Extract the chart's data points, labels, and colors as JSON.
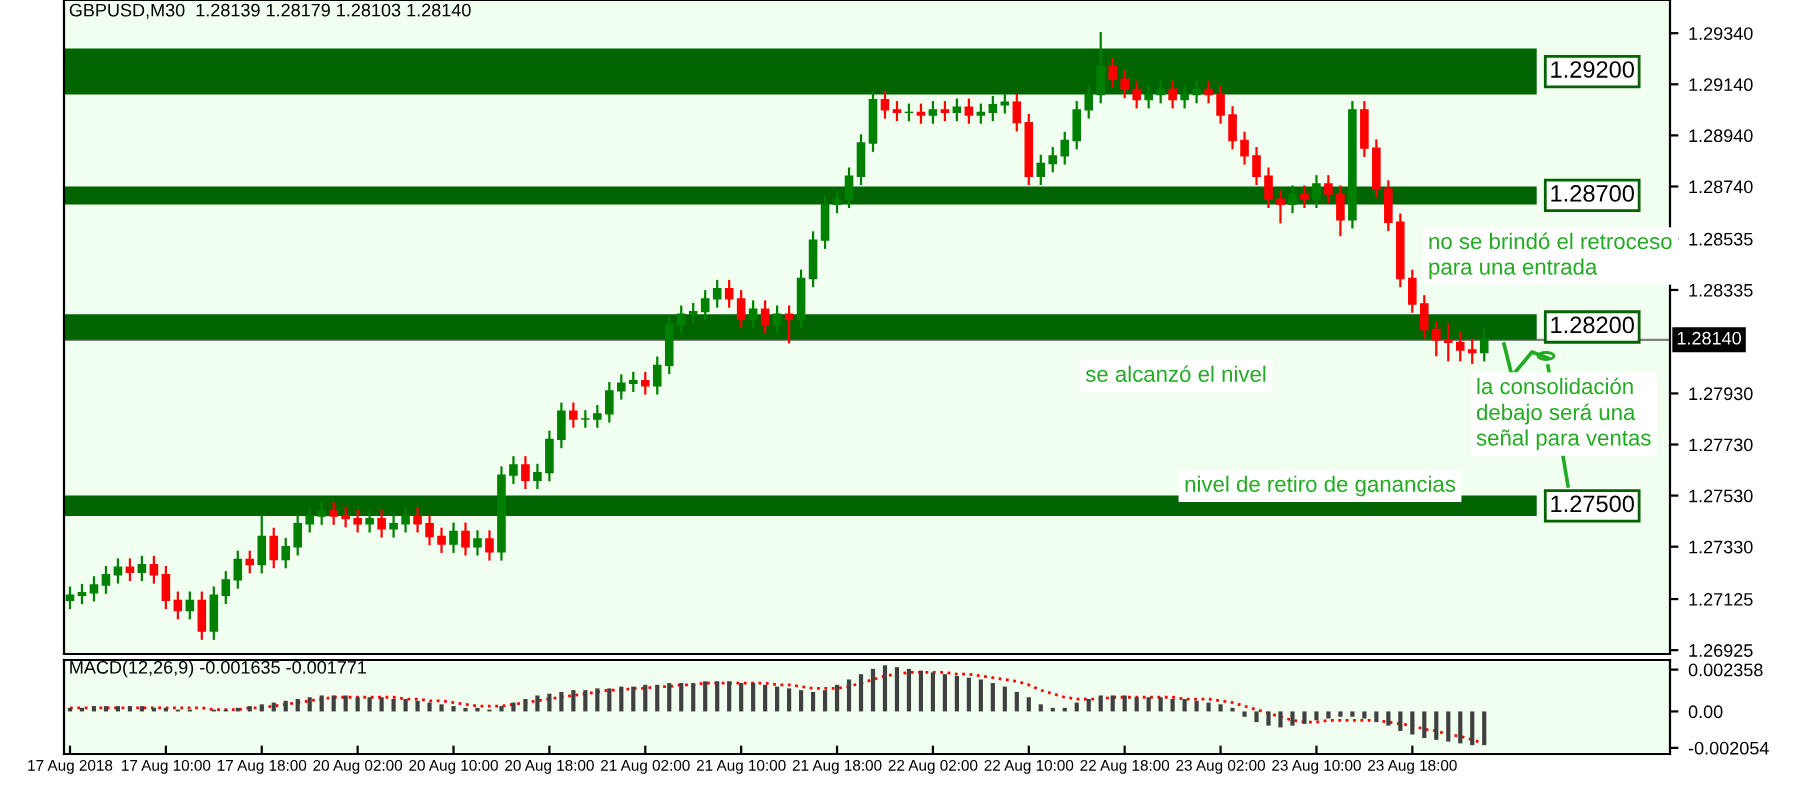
{
  "chart_data": [
    {
      "type": "candlestick",
      "title": "GBPUSD,M30  1.28139 1.28179 1.28103 1.28140",
      "categories": [
        null,
        null,
        null,
        null,
        null,
        null,
        null,
        null,
        null,
        null,
        null,
        null,
        null,
        null,
        null,
        null,
        null,
        null,
        null,
        null,
        null,
        null,
        null,
        null,
        null,
        null,
        null,
        null,
        null,
        null,
        null,
        null,
        null,
        null,
        null,
        null,
        null,
        null,
        null,
        null,
        null,
        null,
        null,
        null,
        null,
        null,
        null,
        null,
        null,
        null,
        null,
        null,
        null,
        null,
        null,
        null,
        null,
        null,
        null,
        null,
        null,
        null,
        null,
        null,
        null,
        null,
        null,
        null,
        null,
        null,
        null,
        null,
        null,
        null,
        null,
        null,
        null,
        null,
        null,
        null,
        null,
        null,
        null,
        null,
        null,
        null,
        null,
        null,
        null,
        null,
        null,
        null,
        null,
        null,
        null,
        null,
        null,
        null,
        null,
        null,
        null,
        null,
        null,
        null,
        null,
        null,
        null,
        null,
        null,
        null,
        null,
        null,
        null,
        null,
        null,
        null,
        null,
        null,
        null,
        null,
        null,
        null,
        null,
        null,
        null,
        null,
        null,
        null,
        null,
        null,
        null,
        null,
        null,
        null
      ],
      "ohlc": [
        [
          1.2712,
          1.2717,
          1.2709,
          1.2714
        ],
        [
          1.2714,
          1.2718,
          1.2711,
          1.2715
        ],
        [
          1.2715,
          1.2721,
          1.2712,
          1.2718
        ],
        [
          1.2718,
          1.2725,
          1.2715,
          1.2722
        ],
        [
          1.2722,
          1.2728,
          1.2719,
          1.2725
        ],
        [
          1.2725,
          1.2728,
          1.272,
          1.2723
        ],
        [
          1.2723,
          1.2729,
          1.272,
          1.2726
        ],
        [
          1.2726,
          1.2729,
          1.2719,
          1.2722
        ],
        [
          1.2722,
          1.2725,
          1.2709,
          1.2712
        ],
        [
          1.2712,
          1.2715,
          1.2705,
          1.2708
        ],
        [
          1.2708,
          1.2715,
          1.2705,
          1.2712
        ],
        [
          1.2712,
          1.2715,
          1.2697,
          1.27
        ],
        [
          1.27,
          1.2717,
          1.2697,
          1.2714
        ],
        [
          1.2714,
          1.2723,
          1.2711,
          1.272
        ],
        [
          1.272,
          1.2731,
          1.2717,
          1.2728
        ],
        [
          1.2728,
          1.2731,
          1.2723,
          1.2726
        ],
        [
          1.2726,
          1.2745,
          1.2723,
          1.2737
        ],
        [
          1.2737,
          1.274,
          1.2725,
          1.2728
        ],
        [
          1.2728,
          1.2736,
          1.2725,
          1.2733
        ],
        [
          1.2733,
          1.2745,
          1.273,
          1.2742
        ],
        [
          1.2742,
          1.2748,
          1.2739,
          1.2745
        ],
        [
          1.2745,
          1.275,
          1.2742,
          1.2747
        ],
        [
          1.2747,
          1.275,
          1.2742,
          1.2745
        ],
        [
          1.2745,
          1.2748,
          1.2741,
          1.2744
        ],
        [
          1.2744,
          1.2747,
          1.2739,
          1.2742
        ],
        [
          1.2742,
          1.2747,
          1.2739,
          1.2744
        ],
        [
          1.2744,
          1.2747,
          1.2737,
          1.274
        ],
        [
          1.274,
          1.2745,
          1.2737,
          1.2742
        ],
        [
          1.2742,
          1.2748,
          1.2739,
          1.2745
        ],
        [
          1.2745,
          1.2748,
          1.2739,
          1.2742
        ],
        [
          1.2742,
          1.2745,
          1.2734,
          1.2737
        ],
        [
          1.2737,
          1.274,
          1.2731,
          1.2734
        ],
        [
          1.2734,
          1.2742,
          1.2731,
          1.2739
        ],
        [
          1.2739,
          1.2742,
          1.273,
          1.2733
        ],
        [
          1.2733,
          1.2739,
          1.273,
          1.2736
        ],
        [
          1.2736,
          1.2739,
          1.2728,
          1.2731
        ],
        [
          1.2731,
          1.2764,
          1.2728,
          1.2761
        ],
        [
          1.2761,
          1.2768,
          1.2758,
          1.2765
        ],
        [
          1.2765,
          1.2768,
          1.2756,
          1.2759
        ],
        [
          1.2759,
          1.2765,
          1.2756,
          1.2762
        ],
        [
          1.2762,
          1.2778,
          1.2759,
          1.2775
        ],
        [
          1.2775,
          1.2789,
          1.2772,
          1.2786
        ],
        [
          1.2786,
          1.2789,
          1.278,
          1.2783
        ],
        [
          1.2783,
          1.2786,
          1.278,
          1.2783
        ],
        [
          1.2783,
          1.2788,
          1.278,
          1.2785
        ],
        [
          1.2785,
          1.2797,
          1.2782,
          1.2794
        ],
        [
          1.2794,
          1.28,
          1.2791,
          1.2797
        ],
        [
          1.2797,
          1.2801,
          1.2794,
          1.2798
        ],
        [
          1.2798,
          1.2801,
          1.2793,
          1.2796
        ],
        [
          1.2796,
          1.2807,
          1.2793,
          1.2804
        ],
        [
          1.2804,
          1.2823,
          1.2801,
          1.282
        ],
        [
          1.282,
          1.2827,
          1.2817,
          1.2824
        ],
        [
          1.2824,
          1.2828,
          1.2821,
          1.2825
        ],
        [
          1.2825,
          1.2833,
          1.2822,
          1.283
        ],
        [
          1.283,
          1.2837,
          1.2827,
          1.2834
        ],
        [
          1.2834,
          1.2837,
          1.2827,
          1.283
        ],
        [
          1.283,
          1.2833,
          1.2819,
          1.2822
        ],
        [
          1.2822,
          1.2829,
          1.2819,
          1.2826
        ],
        [
          1.2826,
          1.2829,
          1.2817,
          1.282
        ],
        [
          1.282,
          1.2827,
          1.2817,
          1.2824
        ],
        [
          1.2824,
          1.2827,
          1.2813,
          1.2822
        ],
        [
          1.2822,
          1.2841,
          1.2819,
          1.2838
        ],
        [
          1.2838,
          1.2856,
          1.2835,
          1.2853
        ],
        [
          1.2853,
          1.287,
          1.285,
          1.2867
        ],
        [
          1.2867,
          1.2872,
          1.2864,
          1.2869
        ],
        [
          1.2869,
          1.2881,
          1.2866,
          1.2878
        ],
        [
          1.2878,
          1.2894,
          1.2875,
          1.2891
        ],
        [
          1.2891,
          1.2911,
          1.2888,
          1.2908
        ],
        [
          1.2908,
          1.2911,
          1.2901,
          1.2904
        ],
        [
          1.2904,
          1.2907,
          1.29,
          1.2903
        ],
        [
          1.2903,
          1.2906,
          1.29,
          1.2903
        ],
        [
          1.2903,
          1.2906,
          1.2899,
          1.2902
        ],
        [
          1.2902,
          1.2907,
          1.2899,
          1.2904
        ],
        [
          1.2904,
          1.2907,
          1.29,
          1.2903
        ],
        [
          1.2903,
          1.2908,
          1.29,
          1.2905
        ],
        [
          1.2905,
          1.2908,
          1.2899,
          1.2902
        ],
        [
          1.2902,
          1.2906,
          1.2899,
          1.2903
        ],
        [
          1.2903,
          1.2909,
          1.29,
          1.2906
        ],
        [
          1.2906,
          1.291,
          1.2903,
          1.2907
        ],
        [
          1.2907,
          1.291,
          1.2896,
          1.2899
        ],
        [
          1.2899,
          1.2902,
          1.2875,
          1.2878
        ],
        [
          1.2878,
          1.2886,
          1.2875,
          1.2883
        ],
        [
          1.2883,
          1.2889,
          1.288,
          1.2886
        ],
        [
          1.2886,
          1.2895,
          1.2883,
          1.2892
        ],
        [
          1.2892,
          1.2907,
          1.2889,
          1.2904
        ],
        [
          1.2904,
          1.2913,
          1.2901,
          1.291
        ],
        [
          1.291,
          1.2934,
          1.2907,
          1.2921
        ],
        [
          1.2921,
          1.2924,
          1.2913,
          1.2916
        ],
        [
          1.2916,
          1.2919,
          1.2909,
          1.2912
        ],
        [
          1.2912,
          1.2915,
          1.2905,
          1.2908
        ],
        [
          1.2908,
          1.2913,
          1.2905,
          1.291
        ],
        [
          1.291,
          1.2915,
          1.2907,
          1.2912
        ],
        [
          1.2912,
          1.2915,
          1.2905,
          1.2908
        ],
        [
          1.2908,
          1.2913,
          1.2905,
          1.291
        ],
        [
          1.291,
          1.2915,
          1.2907,
          1.2912
        ],
        [
          1.2912,
          1.2915,
          1.2907,
          1.291
        ],
        [
          1.291,
          1.2913,
          1.2899,
          1.2902
        ],
        [
          1.2902,
          1.2905,
          1.2889,
          1.2892
        ],
        [
          1.2892,
          1.2895,
          1.2883,
          1.2886
        ],
        [
          1.2886,
          1.2889,
          1.2875,
          1.2878
        ],
        [
          1.2878,
          1.2881,
          1.2866,
          1.2869
        ],
        [
          1.2869,
          1.2872,
          1.286,
          1.2867
        ],
        [
          1.2867,
          1.2874,
          1.2864,
          1.2871
        ],
        [
          1.2871,
          1.2874,
          1.2866,
          1.2869
        ],
        [
          1.2869,
          1.2878,
          1.2866,
          1.2875
        ],
        [
          1.2875,
          1.2878,
          1.2868,
          1.2871
        ],
        [
          1.2871,
          1.2874,
          1.2855,
          1.2861
        ],
        [
          1.2861,
          1.2907,
          1.2858,
          1.2904
        ],
        [
          1.2904,
          1.2907,
          1.2886,
          1.2889
        ],
        [
          1.2889,
          1.2892,
          1.287,
          1.2873
        ],
        [
          1.2873,
          1.2876,
          1.2857,
          1.286
        ],
        [
          1.286,
          1.2863,
          1.2835,
          1.2838
        ],
        [
          1.2838,
          1.2841,
          1.2825,
          1.2828
        ],
        [
          1.2828,
          1.2831,
          1.2815,
          1.2818
        ],
        [
          1.2818,
          1.2821,
          1.2808,
          1.2814
        ],
        [
          1.2814,
          1.282,
          1.2806,
          1.2813
        ],
        [
          1.2813,
          1.2817,
          1.2806,
          1.281
        ],
        [
          1.281,
          1.2814,
          1.2805,
          1.2809
        ],
        [
          1.2809,
          1.2818,
          1.2806,
          1.2814
        ],
        null,
        null,
        null,
        null,
        null,
        null,
        null,
        null,
        null,
        null,
        null,
        null,
        null,
        null,
        null
      ],
      "colors": [
        "#008000",
        "#008000",
        "#008000",
        "#008000",
        "#008000",
        "#ff0000",
        "#008000",
        "#ff0000",
        "#ff0000",
        "#ff0000",
        "#008000",
        "#ff0000",
        "#008000",
        "#008000",
        "#008000",
        "#ff0000",
        "#008000",
        "#ff0000",
        "#008000",
        "#008000",
        "#008000",
        "#008000",
        "#ff0000",
        "#ff0000",
        "#ff0000",
        "#008000",
        "#ff0000",
        "#008000",
        "#008000",
        "#ff0000",
        "#ff0000",
        "#ff0000",
        "#008000",
        "#ff0000",
        "#008000",
        "#ff0000",
        "#008000",
        "#008000",
        "#ff0000",
        "#008000",
        "#008000",
        "#008000",
        "#ff0000",
        "#008000",
        "#008000",
        "#008000",
        "#008000",
        "#008000",
        "#ff0000",
        "#008000",
        "#008000",
        "#008000",
        "#008000",
        "#008000",
        "#008000",
        "#ff0000",
        "#ff0000",
        "#008000",
        "#ff0000",
        "#008000",
        "#ff0000",
        "#008000",
        "#008000",
        "#008000",
        "#008000",
        "#008000",
        "#008000",
        "#008000",
        "#ff0000",
        "#ff0000",
        "#008000",
        "#ff0000",
        "#008000",
        "#ff0000",
        "#008000",
        "#ff0000",
        "#008000",
        "#008000",
        "#008000",
        "#ff0000",
        "#ff0000",
        "#008000",
        "#008000",
        "#008000",
        "#008000",
        "#008000",
        "#008000",
        "#ff0000",
        "#ff0000",
        "#ff0000",
        "#008000",
        "#008000",
        "#ff0000",
        "#008000",
        "#008000",
        "#ff0000",
        "#ff0000",
        "#ff0000",
        "#ff0000",
        "#ff0000",
        "#ff0000",
        "#ff0000",
        "#008000",
        "#ff0000",
        "#008000",
        "#ff0000",
        "#ff0000",
        "#008000",
        "#ff0000",
        "#ff0000",
        "#ff0000",
        "#ff0000",
        "#ff0000",
        "#ff0000",
        "#ff0000",
        "#ff0000",
        "#ff0000",
        "#ff0000",
        "#008000",
        null,
        null,
        null,
        null,
        null,
        null,
        null,
        null,
        null,
        null,
        null,
        null,
        null,
        null,
        null
      ],
      "ylim": [
        1.2691,
        1.2947
      ],
      "yticks": [
        {
          "value": 1.2934,
          "label": "1.29340"
        },
        {
          "value": 1.2914,
          "label": "1.29140"
        },
        {
          "value": 1.2894,
          "label": "1.28940"
        },
        {
          "value": 1.2874,
          "label": "1.28740"
        },
        {
          "value": 1.28535,
          "label": "1.28535"
        },
        {
          "value": 1.28335,
          "label": "1.28335"
        },
        {
          "value": 1.2793,
          "label": "1.27930"
        },
        {
          "value": 1.2773,
          "label": "1.27730"
        },
        {
          "value": 1.2753,
          "label": "1.27530"
        },
        {
          "value": 1.2733,
          "label": "1.27330"
        },
        {
          "value": 1.27125,
          "label": "1.27125"
        },
        {
          "value": 1.26925,
          "label": "1.26925"
        }
      ],
      "tick_labels": "y",
      "bands": [
        {
          "axis": "y",
          "from": 1.291,
          "to": 1.2928,
          "label": "1.29200",
          "color": "#006400"
        },
        {
          "axis": "y",
          "from": 1.2867,
          "to": 1.2874,
          "label": "1.28700",
          "color": "#006400"
        },
        {
          "axis": "y",
          "from": 1.2814,
          "to": 1.2824,
          "label": "1.28200",
          "color": "#006400"
        },
        {
          "axis": "y",
          "from": 1.2745,
          "to": 1.2753,
          "label": "1.27500",
          "color": "#006400"
        }
      ],
      "ref_lines": [
        {
          "axis": "y",
          "value": 1.2814,
          "label": "1.28140",
          "color": "#808080"
        }
      ],
      "annotations": [
        "no se brindó el retroceso\npara una entrada",
        "se alcanzó el nivel",
        "la consolidación\ndebajo será una\nseñal para ventas",
        "nivel de retiro de ganancias"
      ]
    },
    {
      "type": "bar",
      "title": "MACD(12,26,9) -0.001635 -0.001771",
      "categories": [
        "17 Aug 2018",
        null,
        null,
        null,
        null,
        null,
        null,
        null,
        "17 Aug 10:00",
        null,
        null,
        null,
        null,
        null,
        null,
        null,
        "17 Aug 18:00",
        null,
        null,
        null,
        null,
        null,
        null,
        null,
        "20 Aug 02:00",
        null,
        null,
        null,
        null,
        null,
        null,
        null,
        "20 Aug 10:00",
        null,
        null,
        null,
        null,
        null,
        null,
        null,
        "20 Aug 18:00",
        null,
        null,
        null,
        null,
        null,
        null,
        null,
        "21 Aug 02:00",
        null,
        null,
        null,
        null,
        null,
        null,
        null,
        "21 Aug 10:00",
        null,
        null,
        null,
        null,
        null,
        null,
        null,
        "21 Aug 18:00",
        null,
        null,
        null,
        null,
        null,
        null,
        null,
        "22 Aug 02:00",
        null,
        null,
        null,
        null,
        null,
        null,
        null,
        "22 Aug 10:00",
        null,
        null,
        null,
        null,
        null,
        null,
        null,
        "22 Aug 18:00",
        null,
        null,
        null,
        null,
        null,
        null,
        null,
        "23 Aug 02:00",
        null,
        null,
        null,
        null,
        null,
        null,
        null,
        "23 Aug 10:00",
        null,
        null,
        null,
        null,
        null,
        null,
        null,
        "23 Aug 18:00",
        null,
        null,
        null,
        null,
        null,
        null,
        null,
        null,
        null,
        null,
        null,
        null,
        null,
        null,
        null,
        null,
        null,
        null,
        null,
        null,
        null
      ],
      "series": [
        {
          "type": "bar",
          "color": "#404040",
          "values": [
            0.0002,
            0.0002,
            0.0003,
            0.0003,
            0.0003,
            0.0003,
            0.0003,
            0.0002,
            0.0002,
            0.0001,
            0.0001,
            0.0,
            0.0001,
            0.0001,
            0.0002,
            0.0003,
            0.0004,
            0.0005,
            0.0006,
            0.0007,
            0.0008,
            0.0009,
            0.0009,
            0.0009,
            0.0008,
            0.0008,
            0.0008,
            0.0007,
            0.0007,
            0.0006,
            0.0005,
            0.0004,
            0.0003,
            0.0002,
            0.0002,
            0.0001,
            0.0003,
            0.0005,
            0.0007,
            0.0009,
            0.001,
            0.0011,
            0.0012,
            0.0012,
            0.0013,
            0.0013,
            0.0014,
            0.0014,
            0.0015,
            0.0015,
            0.0016,
            0.0016,
            0.0016,
            0.0017,
            0.0017,
            0.0017,
            0.0016,
            0.0016,
            0.0015,
            0.0014,
            0.0013,
            0.0012,
            0.0011,
            0.0012,
            0.0015,
            0.0018,
            0.0021,
            0.0024,
            0.0026,
            0.0025,
            0.0024,
            0.0023,
            0.0022,
            0.0021,
            0.002,
            0.0019,
            0.0018,
            0.0016,
            0.0014,
            0.0011,
            0.0008,
            0.0004,
            0.0002,
            0.0002,
            0.0005,
            0.0007,
            0.0009,
            0.0009,
            0.0009,
            0.0008,
            0.0008,
            0.0008,
            0.0007,
            0.0007,
            0.0006,
            0.0005,
            0.0004,
            0.0002,
            -0.0003,
            -0.0006,
            -0.0008,
            -0.0009,
            -0.0008,
            -0.0007,
            -0.0005,
            -0.0004,
            -0.0003,
            -0.0003,
            -0.0004,
            -0.0006,
            -0.0008,
            -0.0011,
            -0.0013,
            -0.0015,
            -0.0016,
            -0.0017,
            -0.0018,
            -0.0019,
            -0.0019,
            null,
            null,
            null,
            null,
            null,
            null,
            null,
            null,
            null,
            null,
            null,
            null,
            null,
            null,
            null
          ]
        },
        {
          "type": "line",
          "color": "#ff0000",
          "line_style": "dotted",
          "values": [
            0.0002,
            0.0002,
            0.0002,
            0.0002,
            0.0002,
            0.0002,
            0.0002,
            0.0002,
            0.0002,
            0.0002,
            0.0002,
            0.0002,
            0.0001,
            0.0001,
            0.0001,
            0.0002,
            0.0002,
            0.0003,
            0.0004,
            0.0005,
            0.0006,
            0.0007,
            0.0008,
            0.0008,
            0.0008,
            0.0008,
            0.0008,
            0.0008,
            0.0007,
            0.0007,
            0.0006,
            0.0006,
            0.0005,
            0.0004,
            0.0003,
            0.0003,
            0.0003,
            0.0004,
            0.0005,
            0.0006,
            0.0007,
            0.0008,
            0.0009,
            0.001,
            0.0011,
            0.0012,
            0.0012,
            0.0013,
            0.0013,
            0.0014,
            0.0014,
            0.0015,
            0.0015,
            0.0016,
            0.0016,
            0.0016,
            0.0016,
            0.0016,
            0.0016,
            0.0015,
            0.0015,
            0.0014,
            0.0013,
            0.0013,
            0.0013,
            0.0014,
            0.0016,
            0.0018,
            0.002,
            0.0021,
            0.0022,
            0.0022,
            0.0022,
            0.0022,
            0.0021,
            0.0021,
            0.002,
            0.0019,
            0.0018,
            0.0017,
            0.0015,
            0.0012,
            0.001,
            0.0008,
            0.0007,
            0.0007,
            0.0007,
            0.0008,
            0.0008,
            0.0008,
            0.0008,
            0.0008,
            0.0008,
            0.0007,
            0.0007,
            0.0007,
            0.0006,
            0.0005,
            0.0003,
            0.0001,
            -0.0001,
            -0.0003,
            -0.0005,
            -0.0006,
            -0.0006,
            -0.0005,
            -0.0005,
            -0.0005,
            -0.0005,
            -0.0005,
            -0.0006,
            -0.0007,
            -0.0008,
            -0.001,
            -0.0011,
            -0.0013,
            -0.0014,
            -0.0016,
            -0.0018,
            null,
            null,
            null,
            null,
            null,
            null,
            null,
            null,
            null,
            null,
            null,
            null,
            null,
            null,
            null
          ]
        }
      ],
      "ylim": [
        -0.0024,
        0.0029
      ],
      "yticks": [
        {
          "value": 0.002358,
          "label": "0.002358"
        },
        {
          "value": 0,
          "label": "0.00"
        },
        {
          "value": -0.002054,
          "label": "-0.002054"
        }
      ]
    }
  ]
}
